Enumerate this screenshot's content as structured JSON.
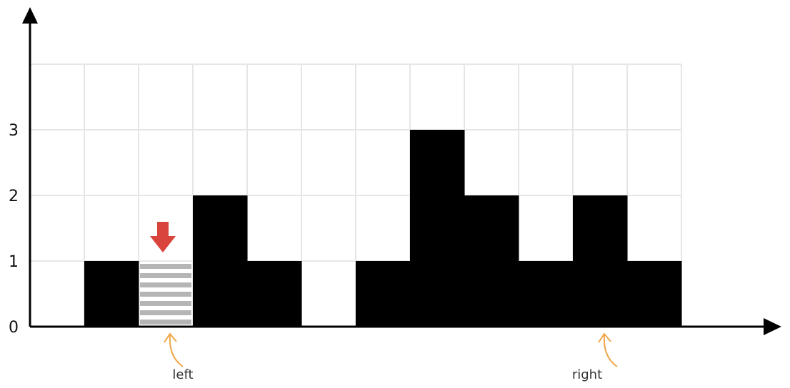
{
  "chart_data": {
    "type": "bar",
    "columns": 12,
    "heights": [
      0,
      1,
      0,
      2,
      1,
      0,
      1,
      3,
      2,
      1,
      2,
      1
    ],
    "water": [
      {
        "column": 2,
        "level": 1
      }
    ],
    "y_ticks": [
      "0",
      "1",
      "2",
      "3"
    ],
    "ylim": [
      0,
      4
    ],
    "grid": true,
    "bar_color": "#000000",
    "water_stripe_color": "#b5b5b5",
    "grid_color": "#e6e6e6",
    "axis_color": "#000000"
  },
  "marker": {
    "column": 2,
    "icon": "down-arrow-icon",
    "color": "#d9453c"
  },
  "pointers": [
    {
      "label": "left",
      "column": 2,
      "color": "#f0a64a"
    },
    {
      "label": "right",
      "column": 10,
      "color": "#f0a64a"
    }
  ]
}
